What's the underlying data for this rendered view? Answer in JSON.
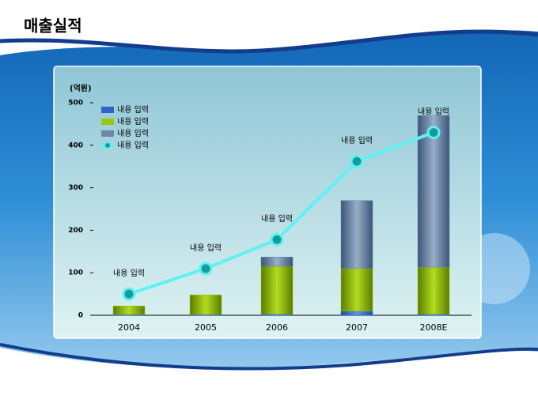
{
  "title": "매출실적",
  "chart_data": {
    "type": "bar",
    "stacked": true,
    "y_label": "(억원)",
    "categories": [
      "2004",
      "2005",
      "2006",
      "2007",
      "2008E"
    ],
    "ylim": [
      0,
      500
    ],
    "yticks": [
      0,
      100,
      200,
      300,
      400,
      500
    ],
    "series": [
      {
        "name": "내용 입력",
        "type": "bar",
        "color": "#2f62c8",
        "values": [
          2,
          2,
          3,
          10,
          3
        ]
      },
      {
        "name": "내용 입력",
        "type": "bar",
        "color": "#9ac80a",
        "values": [
          20,
          46,
          112,
          100,
          110
        ]
      },
      {
        "name": "내용 입력",
        "type": "bar",
        "color": "#6d86a8",
        "values": [
          0,
          0,
          22,
          160,
          357
        ]
      },
      {
        "name": "내용 입력",
        "type": "line",
        "color": "#5ff2f2",
        "values": [
          50,
          110,
          178,
          362,
          430
        ],
        "point_labels": [
          "내용 입력",
          "내용 입력",
          "내용 입력",
          "내용 입력",
          "내용 입력"
        ]
      }
    ]
  }
}
